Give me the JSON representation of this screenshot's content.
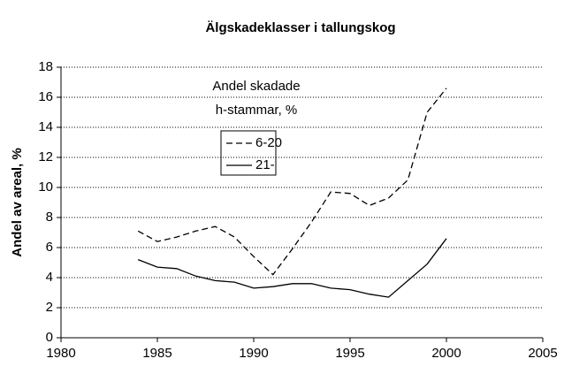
{
  "chart_data": {
    "type": "line",
    "title": "Älgskadeklasser i tallungskog",
    "y_label": "Andel av areal, %",
    "annotations": [
      "Andel skadade",
      "h-stammar, %"
    ],
    "x": [
      1984,
      1985,
      1986,
      1987,
      1988,
      1989,
      1990,
      1991,
      1992,
      1993,
      1994,
      1995,
      1996,
      1997,
      1998,
      1999,
      2000
    ],
    "series": [
      {
        "name": "6-20",
        "color": "#000000",
        "dash": true,
        "values": [
          7.1,
          6.4,
          6.7,
          7.1,
          7.4,
          6.7,
          5.4,
          4.2,
          5.9,
          7.7,
          9.7,
          9.6,
          8.8,
          9.3,
          10.5,
          15.0,
          16.6
        ]
      },
      {
        "name": "21-",
        "color": "#000000",
        "dash": false,
        "values": [
          5.2,
          4.7,
          4.6,
          4.1,
          3.8,
          3.7,
          3.3,
          3.4,
          3.6,
          3.6,
          3.3,
          3.2,
          2.9,
          2.7,
          3.8,
          4.9,
          6.6
        ]
      }
    ],
    "xlim": [
      1980,
      2005
    ],
    "xticks": [
      1980,
      1985,
      1990,
      1995,
      2000,
      2005
    ],
    "ylim": [
      0,
      18
    ],
    "yticks": [
      0,
      2,
      4,
      6,
      8,
      10,
      12,
      14,
      16,
      18
    ],
    "grid": true
  }
}
